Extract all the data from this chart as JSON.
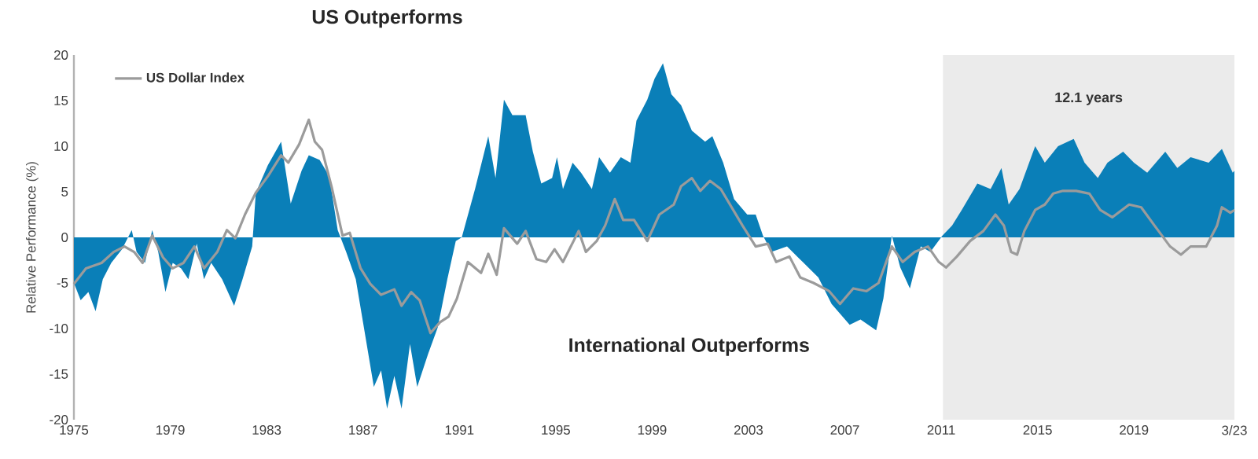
{
  "chart_data": {
    "type": "area",
    "ylabel": "Relative Performance (%)",
    "annotations": [
      "US Outperforms",
      "International Outperforms"
    ],
    "xlim": [
      1975,
      2023.17
    ],
    "ylim": [
      -20,
      20
    ],
    "xticks": [
      1975,
      1979,
      1983,
      1987,
      1991,
      1995,
      1999,
      2003,
      2007,
      2011,
      2015,
      2019,
      {
        "value": 2023.17,
        "label": "3/23"
      }
    ],
    "yticks": [
      -20,
      -15,
      -10,
      -5,
      0,
      5,
      10,
      15,
      20
    ],
    "bands": [
      {
        "axis": "x",
        "from": 2011.07,
        "to": 2023.17,
        "label": "12.1 years",
        "color": "#ebebeb"
      }
    ],
    "legend": "top left",
    "series": [
      {
        "color": "#0a7fb8",
        "x": [
          1975.0,
          1975.28,
          1975.6,
          1975.9,
          1976.2,
          1976.55,
          1977.0,
          1977.4,
          1977.6,
          1977.95,
          1978.25,
          1978.5,
          1978.8,
          1979.1,
          1979.45,
          1979.75,
          1980.1,
          1980.4,
          1980.7,
          1981.15,
          1981.65,
          1982.0,
          1982.4,
          1982.55,
          1983.05,
          1983.6,
          1984.0,
          1984.45,
          1984.75,
          1985.2,
          1985.6,
          1985.95,
          1986.3,
          1986.7,
          1987.0,
          1987.45,
          1987.75,
          1988.0,
          1988.3,
          1988.6,
          1988.95,
          1989.25,
          1989.7,
          1990.1,
          1990.5,
          1990.85,
          1991.1,
          1991.65,
          1992.2,
          1992.5,
          1992.85,
          1993.2,
          1993.75,
          1994.05,
          1994.4,
          1994.85,
          1995.05,
          1995.3,
          1995.7,
          1996.05,
          1996.5,
          1996.8,
          1997.25,
          1997.7,
          1998.1,
          1998.35,
          1998.8,
          1999.1,
          1999.45,
          1999.8,
          2000.2,
          2000.65,
          2001.2,
          2001.5,
          2001.95,
          2002.4,
          2002.95,
          2003.3,
          2003.6,
          2003.95,
          2004.6,
          2005.25,
          2005.9,
          2006.45,
          2007.2,
          2007.65,
          2008.3,
          2008.6,
          2008.95,
          2009.3,
          2009.7,
          2010.15,
          2010.55,
          2011.05,
          2011.45,
          2011.85,
          2012.5,
          2013.05,
          2013.5,
          2013.8,
          2014.25,
          2014.9,
          2015.3,
          2015.85,
          2016.5,
          2016.95,
          2017.5,
          2017.9,
          2018.55,
          2019.0,
          2019.55,
          2020.3,
          2020.8,
          2021.35,
          2022.1,
          2022.65,
          2023.1,
          2023.17
        ],
        "values": [
          -5.0,
          -6.9,
          -6.0,
          -8.1,
          -4.6,
          -2.8,
          -1.3,
          0.8,
          -1.6,
          -2.8,
          0.8,
          -1.6,
          -6.0,
          -2.8,
          -3.4,
          -4.6,
          -0.7,
          -4.6,
          -2.8,
          -4.6,
          -7.5,
          -4.6,
          -1.0,
          4.9,
          7.9,
          10.5,
          3.7,
          7.3,
          9.0,
          8.5,
          6.7,
          0.8,
          -1.6,
          -4.6,
          -9.3,
          -16.4,
          -14.6,
          -18.8,
          -15.2,
          -18.8,
          -11.7,
          -16.4,
          -12.8,
          -9.9,
          -4.6,
          -0.4,
          0.0,
          5.3,
          11.1,
          6.5,
          15.1,
          13.4,
          13.4,
          9.4,
          5.9,
          6.5,
          8.8,
          5.3,
          8.2,
          7.1,
          5.3,
          8.8,
          7.1,
          8.8,
          8.2,
          12.8,
          15.1,
          17.4,
          19.1,
          15.7,
          14.5,
          11.7,
          10.5,
          11.1,
          8.2,
          4.2,
          2.5,
          2.5,
          0.2,
          -1.6,
          -1.0,
          -2.7,
          -4.4,
          -7.3,
          -9.6,
          -9.0,
          -10.2,
          -6.7,
          0.2,
          -3.3,
          -5.6,
          -1.0,
          -1.6,
          0.2,
          1.3,
          3.0,
          5.9,
          5.3,
          7.6,
          3.6,
          5.3,
          10.0,
          8.2,
          10.0,
          10.8,
          8.2,
          6.5,
          8.2,
          9.4,
          8.2,
          7.1,
          9.4,
          7.6,
          8.8,
          8.2,
          9.7,
          7.1,
          7.3
        ]
      },
      {
        "type": "line",
        "name": "US Dollar Index",
        "color": "#9b9b9b",
        "line_style": "solid",
        "x": [
          1975.0,
          1975.5,
          1976.15,
          1976.65,
          1977.1,
          1977.5,
          1977.85,
          1978.25,
          1978.7,
          1979.1,
          1979.55,
          1980.0,
          1980.4,
          1980.95,
          1981.35,
          1981.7,
          1982.1,
          1982.55,
          1983.05,
          1983.6,
          1983.9,
          1984.35,
          1984.75,
          1985.0,
          1985.3,
          1985.7,
          1986.15,
          1986.45,
          1986.9,
          1987.3,
          1987.75,
          1988.3,
          1988.6,
          1989.0,
          1989.35,
          1989.8,
          1990.2,
          1990.55,
          1990.9,
          1991.35,
          1991.9,
          1992.2,
          1992.55,
          1992.85,
          1993.4,
          1993.75,
          1994.2,
          1994.6,
          1994.95,
          1995.3,
          1995.95,
          1996.25,
          1996.7,
          1997.05,
          1997.45,
          1997.8,
          1998.25,
          1998.8,
          1999.3,
          1999.9,
          2000.2,
          2000.65,
          2001.0,
          2001.4,
          2001.85,
          2002.3,
          2002.75,
          2003.3,
          2003.8,
          2004.15,
          2004.7,
          2005.15,
          2005.7,
          2006.35,
          2006.8,
          2007.35,
          2007.9,
          2008.4,
          2008.95,
          2009.4,
          2009.9,
          2010.45,
          2010.9,
          2011.2,
          2011.65,
          2012.2,
          2012.75,
          2013.25,
          2013.6,
          2013.9,
          2014.15,
          2014.45,
          2014.9,
          2015.3,
          2015.65,
          2016.05,
          2016.6,
          2017.15,
          2017.6,
          2018.1,
          2018.8,
          2019.3,
          2019.85,
          2020.5,
          2020.95,
          2021.35,
          2022.0,
          2022.45,
          2022.65,
          2023.0,
          2023.17
        ],
        "values": [
          -5.1,
          -3.4,
          -2.8,
          -1.6,
          -1.0,
          -1.6,
          -2.8,
          0.2,
          -2.2,
          -3.4,
          -2.8,
          -1.0,
          -3.4,
          -1.6,
          0.8,
          -0.1,
          2.5,
          4.9,
          6.7,
          9.0,
          8.2,
          10.2,
          12.9,
          10.5,
          9.6,
          5.5,
          0.2,
          0.5,
          -3.4,
          -5.1,
          -6.3,
          -5.7,
          -7.5,
          -6.0,
          -6.9,
          -10.5,
          -9.3,
          -8.7,
          -6.7,
          -2.7,
          -3.9,
          -1.8,
          -4.1,
          1.0,
          -0.7,
          0.7,
          -2.4,
          -2.7,
          -1.3,
          -2.7,
          0.7,
          -1.6,
          -0.4,
          1.3,
          4.2,
          1.9,
          1.9,
          -0.4,
          2.5,
          3.6,
          5.6,
          6.5,
          5.1,
          6.2,
          5.3,
          3.3,
          1.3,
          -1.0,
          -0.7,
          -2.7,
          -2.1,
          -4.4,
          -5.0,
          -5.9,
          -7.3,
          -5.6,
          -5.9,
          -5.0,
          -1.0,
          -2.7,
          -1.6,
          -1.0,
          -2.7,
          -3.3,
          -2.1,
          -0.4,
          0.7,
          2.5,
          1.3,
          -1.6,
          -1.9,
          0.7,
          3.0,
          3.6,
          4.8,
          5.1,
          5.1,
          4.8,
          3.0,
          2.2,
          3.6,
          3.3,
          1.3,
          -1.0,
          -1.9,
          -1.0,
          -1.0,
          1.3,
          3.3,
          2.7,
          3.0
        ]
      }
    ]
  }
}
